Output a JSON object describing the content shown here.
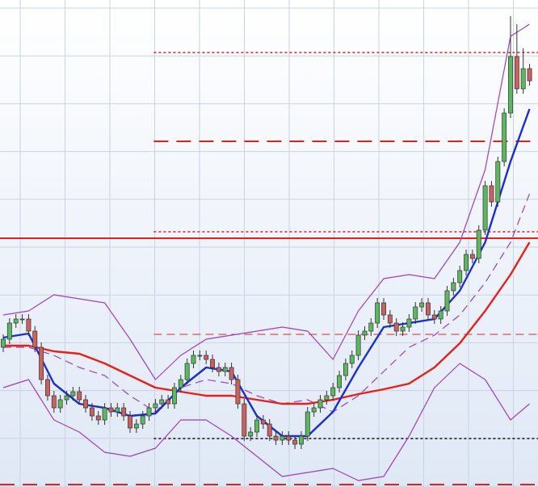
{
  "chart_data": {
    "type": "candlestick",
    "ylim": [
      0,
      603
    ],
    "grid": true,
    "up_color": "#5cb85c",
    "down_color": "#c9625f",
    "categories": [
      null,
      null,
      null,
      null,
      null,
      null,
      null,
      null,
      null,
      null,
      null,
      null,
      null,
      null,
      null,
      null,
      null,
      null,
      null,
      null,
      null,
      null,
      null,
      null,
      null,
      null,
      null,
      null,
      null,
      null,
      null,
      null,
      null,
      null,
      null,
      null,
      null,
      null,
      null,
      null,
      null,
      null,
      null,
      null,
      null,
      null,
      null,
      null,
      null,
      null,
      null,
      null,
      null,
      null,
      null,
      null,
      null,
      null,
      null,
      null,
      null,
      null,
      null,
      null,
      null,
      null,
      null,
      null,
      null,
      null,
      null,
      null,
      null,
      null,
      null,
      null,
      null,
      null,
      null,
      null,
      null,
      null,
      null,
      null
    ],
    "open": [
      173,
      183,
      203,
      208,
      208,
      193,
      173,
      133,
      113,
      98,
      108,
      113,
      118,
      108,
      98,
      88,
      83,
      98,
      93,
      98,
      88,
      73,
      78,
      88,
      98,
      103,
      108,
      103,
      123,
      133,
      153,
      163,
      163,
      158,
      148,
      143,
      148,
      133,
      103,
      63,
      68,
      83,
      78,
      63,
      58,
      63,
      58,
      53,
      63,
      93,
      98,
      108,
      113,
      123,
      138,
      153,
      163,
      188,
      193,
      203,
      228,
      213,
      203,
      193,
      198,
      208,
      223,
      228,
      213,
      208,
      218,
      243,
      253,
      268,
      288,
      283,
      318,
      373,
      353,
      403,
      463,
      533,
      493,
      518
    ],
    "high": [
      189,
      209,
      214,
      214,
      214,
      199,
      179,
      139,
      119,
      114,
      119,
      124,
      124,
      114,
      104,
      94,
      104,
      104,
      104,
      104,
      94,
      84,
      94,
      104,
      109,
      114,
      114,
      129,
      139,
      159,
      169,
      169,
      169,
      164,
      154,
      154,
      154,
      139,
      109,
      74,
      89,
      89,
      84,
      69,
      69,
      69,
      64,
      69,
      99,
      104,
      114,
      119,
      129,
      144,
      159,
      169,
      194,
      199,
      209,
      234,
      234,
      219,
      209,
      204,
      214,
      229,
      234,
      234,
      219,
      224,
      249,
      259,
      274,
      294,
      294,
      324,
      379,
      379,
      409,
      469,
      583,
      573,
      543,
      524
    ],
    "low": [
      167,
      177,
      197,
      202,
      187,
      167,
      127,
      107,
      92,
      92,
      102,
      107,
      102,
      92,
      82,
      77,
      77,
      87,
      87,
      82,
      67,
      67,
      72,
      82,
      92,
      97,
      97,
      97,
      117,
      127,
      147,
      157,
      152,
      142,
      137,
      137,
      127,
      97,
      57,
      57,
      62,
      72,
      57,
      52,
      52,
      52,
      47,
      47,
      57,
      87,
      92,
      102,
      107,
      117,
      132,
      147,
      157,
      182,
      187,
      197,
      207,
      197,
      187,
      187,
      192,
      202,
      217,
      207,
      202,
      202,
      212,
      237,
      247,
      262,
      277,
      277,
      312,
      347,
      347,
      397,
      457,
      487,
      487,
      497
    ],
    "close": [
      183,
      203,
      208,
      208,
      193,
      173,
      133,
      113,
      98,
      108,
      113,
      118,
      108,
      98,
      88,
      83,
      98,
      93,
      98,
      88,
      73,
      78,
      88,
      98,
      103,
      108,
      103,
      123,
      133,
      153,
      163,
      163,
      158,
      148,
      143,
      148,
      133,
      103,
      63,
      68,
      83,
      78,
      63,
      58,
      63,
      58,
      53,
      63,
      93,
      98,
      108,
      113,
      123,
      138,
      153,
      163,
      188,
      193,
      203,
      228,
      213,
      203,
      193,
      198,
      208,
      223,
      228,
      213,
      208,
      218,
      243,
      253,
      268,
      288,
      283,
      318,
      373,
      353,
      403,
      463,
      533,
      493,
      518,
      503
    ],
    "overlays": [
      {
        "color": "#9b3fc4",
        "style": "solid",
        "x": [
          0,
          4,
          8,
          12,
          16,
          20,
          24,
          28,
          32,
          36,
          40,
          44,
          48,
          52,
          56,
          60,
          64,
          68,
          72,
          76,
          80,
          83
        ],
        "values": [
          213,
          218,
          238,
          233,
          228,
          183,
          133,
          163,
          183,
          188,
          193,
          198,
          193,
          158,
          218,
          258,
          263,
          258,
          303,
          393,
          558,
          573
        ]
      },
      {
        "color": "#9b3fc4",
        "style": "solid",
        "x": [
          0,
          4,
          8,
          12,
          16,
          20,
          24,
          28,
          32,
          36,
          40,
          44,
          48,
          52,
          56,
          60,
          64,
          68,
          72,
          76,
          80,
          83
        ],
        "values": [
          123,
          133,
          83,
          68,
          43,
          38,
          48,
          83,
          83,
          63,
          38,
          13,
          18,
          23,
          8,
          13,
          63,
          123,
          153,
          133,
          83,
          103
        ]
      },
      {
        "color": "#9b3fc4",
        "style": "dashed",
        "x": [
          0,
          4,
          8,
          12,
          16,
          20,
          24,
          28,
          32,
          36,
          40,
          44,
          48,
          52,
          56,
          60,
          64,
          68,
          72,
          76,
          80,
          83
        ],
        "values": [
          173,
          173,
          163,
          148,
          138,
          113,
          93,
          123,
          133,
          128,
          113,
          103,
          108,
          93,
          113,
          143,
          173,
          188,
          213,
          253,
          303,
          363
        ]
      },
      {
        "color": "#e8201a",
        "style": "thick",
        "x": [
          0,
          4,
          8,
          12,
          16,
          20,
          24,
          28,
          32,
          36,
          40,
          44,
          48,
          52,
          56,
          60,
          64,
          68,
          72,
          76,
          80,
          83
        ],
        "values": [
          175,
          175,
          168,
          165,
          153,
          138,
          123,
          118,
          113,
          113,
          108,
          103,
          103,
          108,
          115,
          121,
          128,
          148,
          178,
          218,
          263,
          303
        ]
      },
      {
        "color": "#1a2fd0",
        "style": "thick",
        "x": [
          0,
          4,
          8,
          12,
          16,
          20,
          24,
          28,
          32,
          36,
          40,
          44,
          48,
          52,
          56,
          60,
          64,
          68,
          72,
          76,
          80,
          83
        ],
        "values": [
          185,
          190,
          128,
          103,
          98,
          88,
          91,
          123,
          148,
          143,
          88,
          63,
          63,
          93,
          148,
          198,
          203,
          208,
          243,
          303,
          403,
          468
        ]
      }
    ],
    "levels": [
      {
        "value": 538,
        "color": "#e8201a",
        "style": "dotted",
        "start": 24
      },
      {
        "value": 428,
        "color": "#e8201a",
        "style": "longdash",
        "start": 24
      },
      {
        "value": 316,
        "color": "#e8201a",
        "style": "dotted",
        "start": 24
      },
      {
        "value": 308,
        "color": "#e8201a",
        "style": "solid",
        "start": null
      },
      {
        "value": 189,
        "color": "#e8201a",
        "style": "dashed",
        "start": 24
      },
      {
        "value": 60,
        "color": "#111111",
        "style": "dotted",
        "start": 24
      },
      {
        "value": 3,
        "color": "#e8201a",
        "style": "longdash",
        "start": null
      }
    ]
  }
}
